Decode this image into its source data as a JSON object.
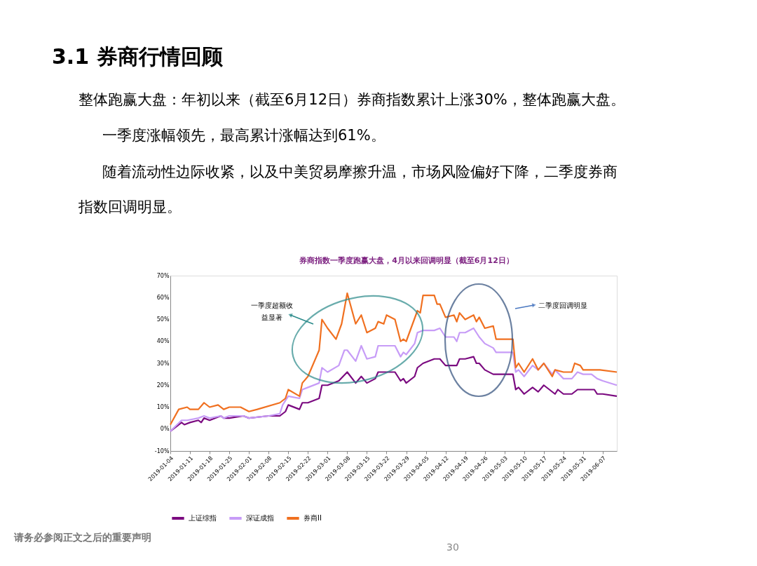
{
  "chart_data": {
    "type": "line",
    "title": "券商指数一季度跑赢大盘，4月以来回调明显（截至6月12日）",
    "annotations": [
      "3.1 券商行情回顾",
      "整体跑赢大盘：年初以来（截至6月12日）券商指数累计上涨30%，整体跑赢大盘。",
      "一季度涨幅领先，最高累计涨幅达到61%。",
      "随着流动性边际收紧，以及中美贸易摩擦升温，市场风险偏好下降，二季度券商指数回调明显。",
      "一季度超额收益显著",
      "二季度回调明显",
      "请务必参阅正文之后的重要声明",
      "30"
    ],
    "series": [
      {
        "name": "上证综指",
        "color": "#7b0a80",
        "x": [
          "2019-01-04",
          "2019-01-08",
          "2019-01-09",
          "2019-01-11",
          "2019-01-14",
          "2019-01-15",
          "2019-01-16",
          "2019-01-18",
          "2019-01-22",
          "2019-01-23",
          "2019-01-25",
          "2019-01-30",
          "2019-02-01",
          "2019-02-08",
          "2019-02-12",
          "2019-02-14",
          "2019-02-15",
          "2019-02-19",
          "2019-02-20",
          "2019-02-22",
          "2019-02-26",
          "2019-02-27",
          "2019-03-01",
          "2019-03-05",
          "2019-03-08",
          "2019-03-11",
          "2019-03-13",
          "2019-03-15",
          "2019-03-18",
          "2019-03-19",
          "2019-03-22",
          "2019-03-25",
          "2019-03-27",
          "2019-03-28",
          "2019-03-29",
          "2019-04-01",
          "2019-04-02",
          "2019-04-04",
          "2019-04-08",
          "2019-04-10",
          "2019-04-12",
          "2019-04-15",
          "2019-04-16",
          "2019-04-17",
          "2019-04-19",
          "2019-04-22",
          "2019-04-23",
          "2019-04-24",
          "2019-04-26",
          "2019-04-29",
          "2019-05-06",
          "2019-05-07",
          "2019-05-08",
          "2019-05-10",
          "2019-05-13",
          "2019-05-15",
          "2019-05-17",
          "2019-05-21",
          "2019-05-22",
          "2019-05-24",
          "2019-05-27",
          "2019-05-29",
          "2019-05-31",
          "2019-06-04",
          "2019-06-05",
          "2019-06-07",
          "2019-06-12"
        ],
        "values": [
          -1,
          3,
          2,
          3,
          4,
          3,
          5,
          4,
          6,
          5,
          5,
          6,
          5,
          6,
          6,
          8,
          11,
          9,
          12,
          12,
          14,
          20,
          20,
          22,
          26,
          21,
          24,
          21,
          23,
          26,
          26,
          26,
          22,
          23,
          21,
          24,
          28,
          30,
          32,
          32,
          29,
          29,
          29,
          32,
          32,
          33,
          30,
          30,
          27,
          25,
          25,
          18,
          19,
          16,
          19,
          17,
          20,
          16,
          18,
          16,
          16,
          18,
          18,
          18,
          16,
          16,
          15
        ]
      },
      {
        "name": "深证成指",
        "color": "#c79cf7",
        "x": [
          "2019-01-04",
          "2019-01-08",
          "2019-01-10",
          "2019-01-14",
          "2019-01-16",
          "2019-01-18",
          "2019-01-22",
          "2019-01-23",
          "2019-01-25",
          "2019-01-30",
          "2019-02-01",
          "2019-02-08",
          "2019-02-12",
          "2019-02-13",
          "2019-02-15",
          "2019-02-19",
          "2019-02-20",
          "2019-02-22",
          "2019-02-26",
          "2019-02-27",
          "2019-03-01",
          "2019-03-05",
          "2019-03-07",
          "2019-03-08",
          "2019-03-11",
          "2019-03-13",
          "2019-03-15",
          "2019-03-18",
          "2019-03-19",
          "2019-03-22",
          "2019-03-25",
          "2019-03-27",
          "2019-03-28",
          "2019-03-29",
          "2019-04-01",
          "2019-04-02",
          "2019-04-04",
          "2019-04-08",
          "2019-04-10",
          "2019-04-12",
          "2019-04-15",
          "2019-04-16",
          "2019-04-17",
          "2019-04-19",
          "2019-04-22",
          "2019-04-24",
          "2019-04-26",
          "2019-04-29",
          "2019-04-30",
          "2019-05-06",
          "2019-05-07",
          "2019-05-08",
          "2019-05-10",
          "2019-05-13",
          "2019-05-15",
          "2019-05-17",
          "2019-05-20",
          "2019-05-21",
          "2019-05-24",
          "2019-05-27",
          "2019-05-29",
          "2019-05-31",
          "2019-06-03",
          "2019-06-05",
          "2019-06-07",
          "2019-06-12"
        ],
        "values": [
          -1,
          4,
          4,
          5,
          6,
          5,
          6,
          5,
          6,
          6,
          5,
          6,
          7,
          11,
          15,
          14,
          18,
          19,
          21,
          28,
          26,
          29,
          36,
          36,
          31,
          38,
          32,
          33,
          38,
          38,
          38,
          33,
          35,
          34,
          39,
          44,
          45,
          45,
          46,
          42,
          42,
          40,
          44,
          44,
          46,
          42,
          39,
          37,
          35,
          35,
          26,
          27,
          24,
          29,
          27,
          30,
          25,
          27,
          23,
          23,
          26,
          25,
          25,
          23,
          22,
          20
        ]
      },
      {
        "name": "券商II",
        "color": "#f07020",
        "x": [
          "2019-01-04",
          "2019-01-07",
          "2019-01-10",
          "2019-01-11",
          "2019-01-14",
          "2019-01-16",
          "2019-01-18",
          "2019-01-21",
          "2019-01-23",
          "2019-01-25",
          "2019-01-29",
          "2019-02-01",
          "2019-02-04",
          "2019-02-12",
          "2019-02-14",
          "2019-02-15",
          "2019-02-19",
          "2019-02-20",
          "2019-02-22",
          "2019-02-26",
          "2019-02-27",
          "2019-03-01",
          "2019-03-04",
          "2019-03-06",
          "2019-03-08",
          "2019-03-11",
          "2019-03-13",
          "2019-03-15",
          "2019-03-18",
          "2019-03-19",
          "2019-03-21",
          "2019-03-22",
          "2019-03-25",
          "2019-03-27",
          "2019-03-28",
          "2019-03-29",
          "2019-04-02",
          "2019-04-03",
          "2019-04-04",
          "2019-04-08",
          "2019-04-09",
          "2019-04-10",
          "2019-04-12",
          "2019-04-15",
          "2019-04-16",
          "2019-04-17",
          "2019-04-19",
          "2019-04-22",
          "2019-04-23",
          "2019-04-24",
          "2019-04-26",
          "2019-04-29",
          "2019-04-30",
          "2019-05-06",
          "2019-05-07",
          "2019-05-08",
          "2019-05-10",
          "2019-05-13",
          "2019-05-15",
          "2019-05-17",
          "2019-05-20",
          "2019-05-21",
          "2019-05-24",
          "2019-05-27",
          "2019-05-28",
          "2019-05-30",
          "2019-05-31",
          "2019-06-05",
          "2019-06-06",
          "2019-06-12"
        ],
        "values": [
          2,
          9,
          10,
          9,
          9,
          12,
          10,
          11,
          9,
          10,
          10,
          8,
          9,
          12,
          14,
          18,
          15,
          21,
          24,
          36,
          50,
          46,
          41,
          48,
          62,
          48,
          52,
          44,
          46,
          49,
          48,
          52,
          50,
          40,
          41,
          40,
          54,
          53,
          61,
          61,
          57,
          57,
          51,
          52,
          49,
          53,
          50,
          52,
          49,
          51,
          46,
          47,
          41,
          41,
          28,
          30,
          26,
          32,
          27,
          30,
          24,
          27,
          26,
          26,
          30,
          29,
          27,
          27,
          27,
          26
        ]
      }
    ],
    "xlim": [
      "2019-01-04",
      "2019-06-12"
    ],
    "xticks": [
      "2019-01-04",
      "2019-01-11",
      "2019-01-18",
      "2019-01-25",
      "2019-02-01",
      "2019-02-08",
      "2019-02-15",
      "2019-02-22",
      "2019-03-01",
      "2019-03-08",
      "2019-03-15",
      "2019-03-22",
      "2019-03-29",
      "2019-04-05",
      "2019-04-12",
      "2019-04-19",
      "2019-04-26",
      "2019-05-03",
      "2019-05-10",
      "2019-05-17",
      "2019-05-24",
      "2019-05-31",
      "2019-06-07"
    ],
    "ylim": [
      -10,
      70
    ],
    "yticks": [
      {
        "value": -10,
        "label": "-10%"
      },
      {
        "value": 0,
        "label": "0%"
      },
      {
        "value": 10,
        "label": "10%"
      },
      {
        "value": 20,
        "label": "20%"
      },
      {
        "value": 30,
        "label": "30%"
      },
      {
        "value": 40,
        "label": "40%"
      },
      {
        "value": 50,
        "label": "50%"
      },
      {
        "value": 60,
        "label": "60%"
      },
      {
        "value": 70,
        "label": "70%"
      }
    ],
    "grid": false,
    "legend": "bottom",
    "marker": "none",
    "line_style": "solid"
  }
}
